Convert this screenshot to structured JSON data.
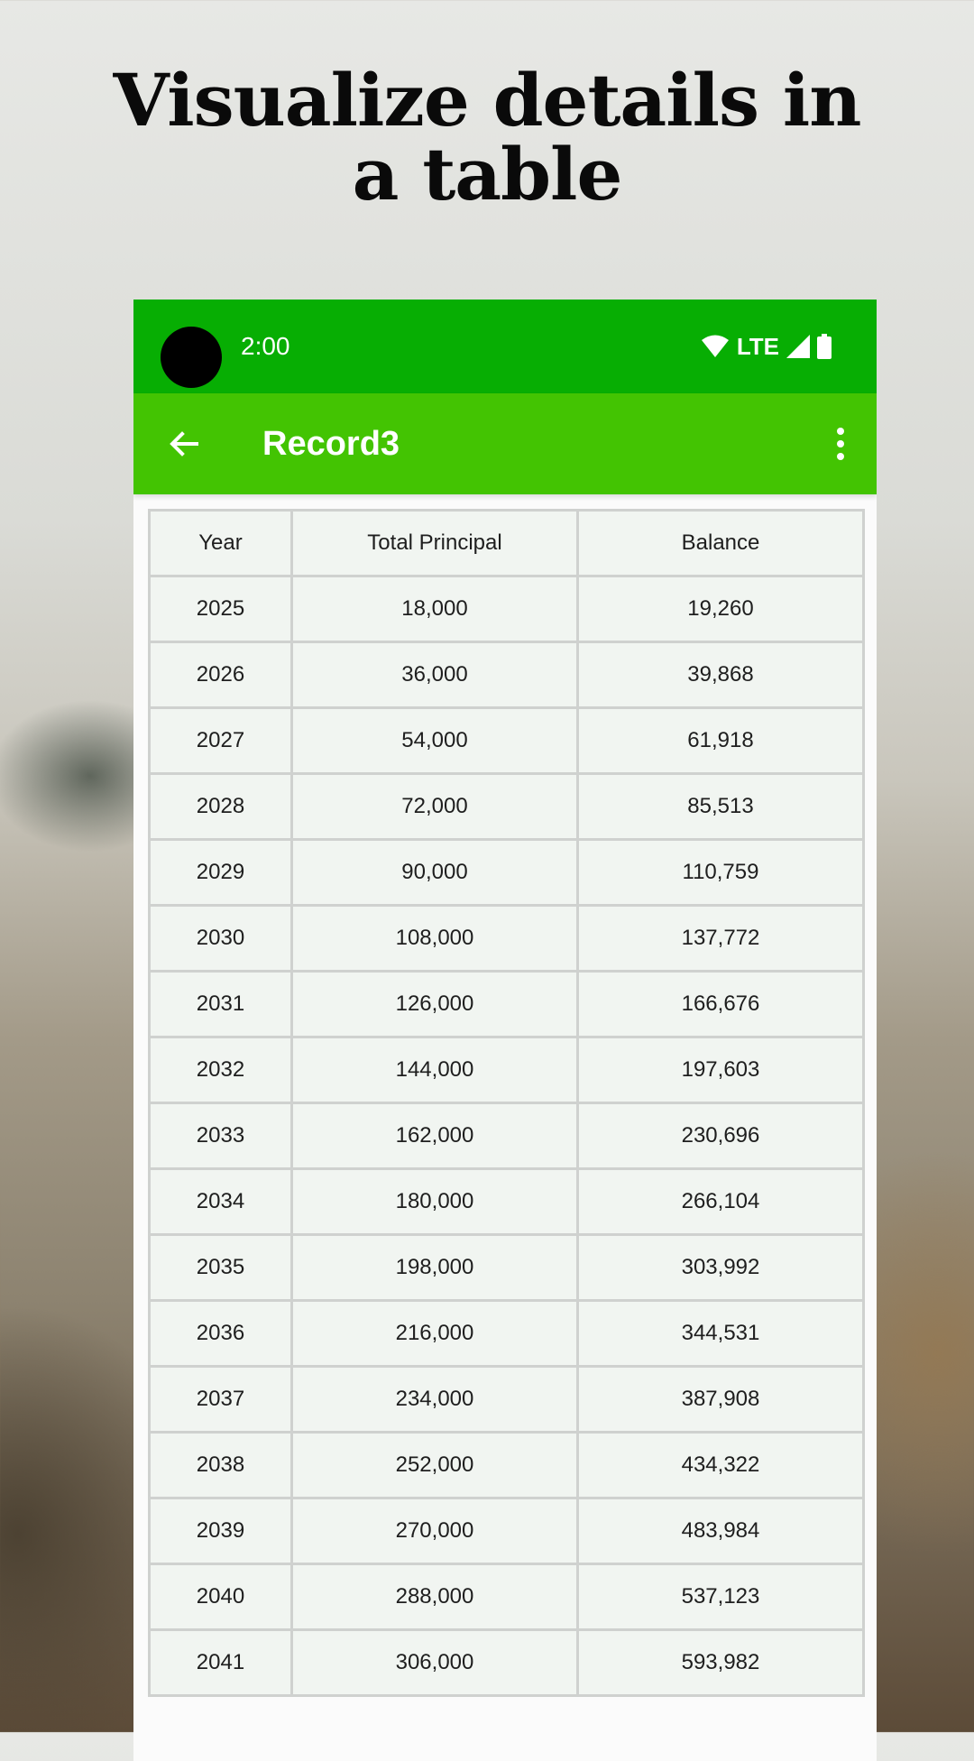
{
  "headline": {
    "line1": "Visualize details in",
    "line2": "a table"
  },
  "status_bar": {
    "time": "2:00",
    "network": "LTE",
    "icons": [
      "wifi-icon",
      "signal-icon",
      "battery-icon"
    ]
  },
  "app_bar": {
    "title": "Record3",
    "back_icon": "arrow-back-icon",
    "menu_icon": "more-vert-icon"
  },
  "colors": {
    "status_bar": "#07ae03",
    "app_bar": "#43c402",
    "table_bg": "#f1f5f1",
    "table_border": "#cfd1cf"
  },
  "table": {
    "headers": [
      "Year",
      "Total Principal",
      "Balance"
    ],
    "rows": [
      [
        "2025",
        "18,000",
        "19,260"
      ],
      [
        "2026",
        "36,000",
        "39,868"
      ],
      [
        "2027",
        "54,000",
        "61,918"
      ],
      [
        "2028",
        "72,000",
        "85,513"
      ],
      [
        "2029",
        "90,000",
        "110,759"
      ],
      [
        "2030",
        "108,000",
        "137,772"
      ],
      [
        "2031",
        "126,000",
        "166,676"
      ],
      [
        "2032",
        "144,000",
        "197,603"
      ],
      [
        "2033",
        "162,000",
        "230,696"
      ],
      [
        "2034",
        "180,000",
        "266,104"
      ],
      [
        "2035",
        "198,000",
        "303,992"
      ],
      [
        "2036",
        "216,000",
        "344,531"
      ],
      [
        "2037",
        "234,000",
        "387,908"
      ],
      [
        "2038",
        "252,000",
        "434,322"
      ],
      [
        "2039",
        "270,000",
        "483,984"
      ],
      [
        "2040",
        "288,000",
        "537,123"
      ],
      [
        "2041",
        "306,000",
        "593,982"
      ]
    ]
  }
}
